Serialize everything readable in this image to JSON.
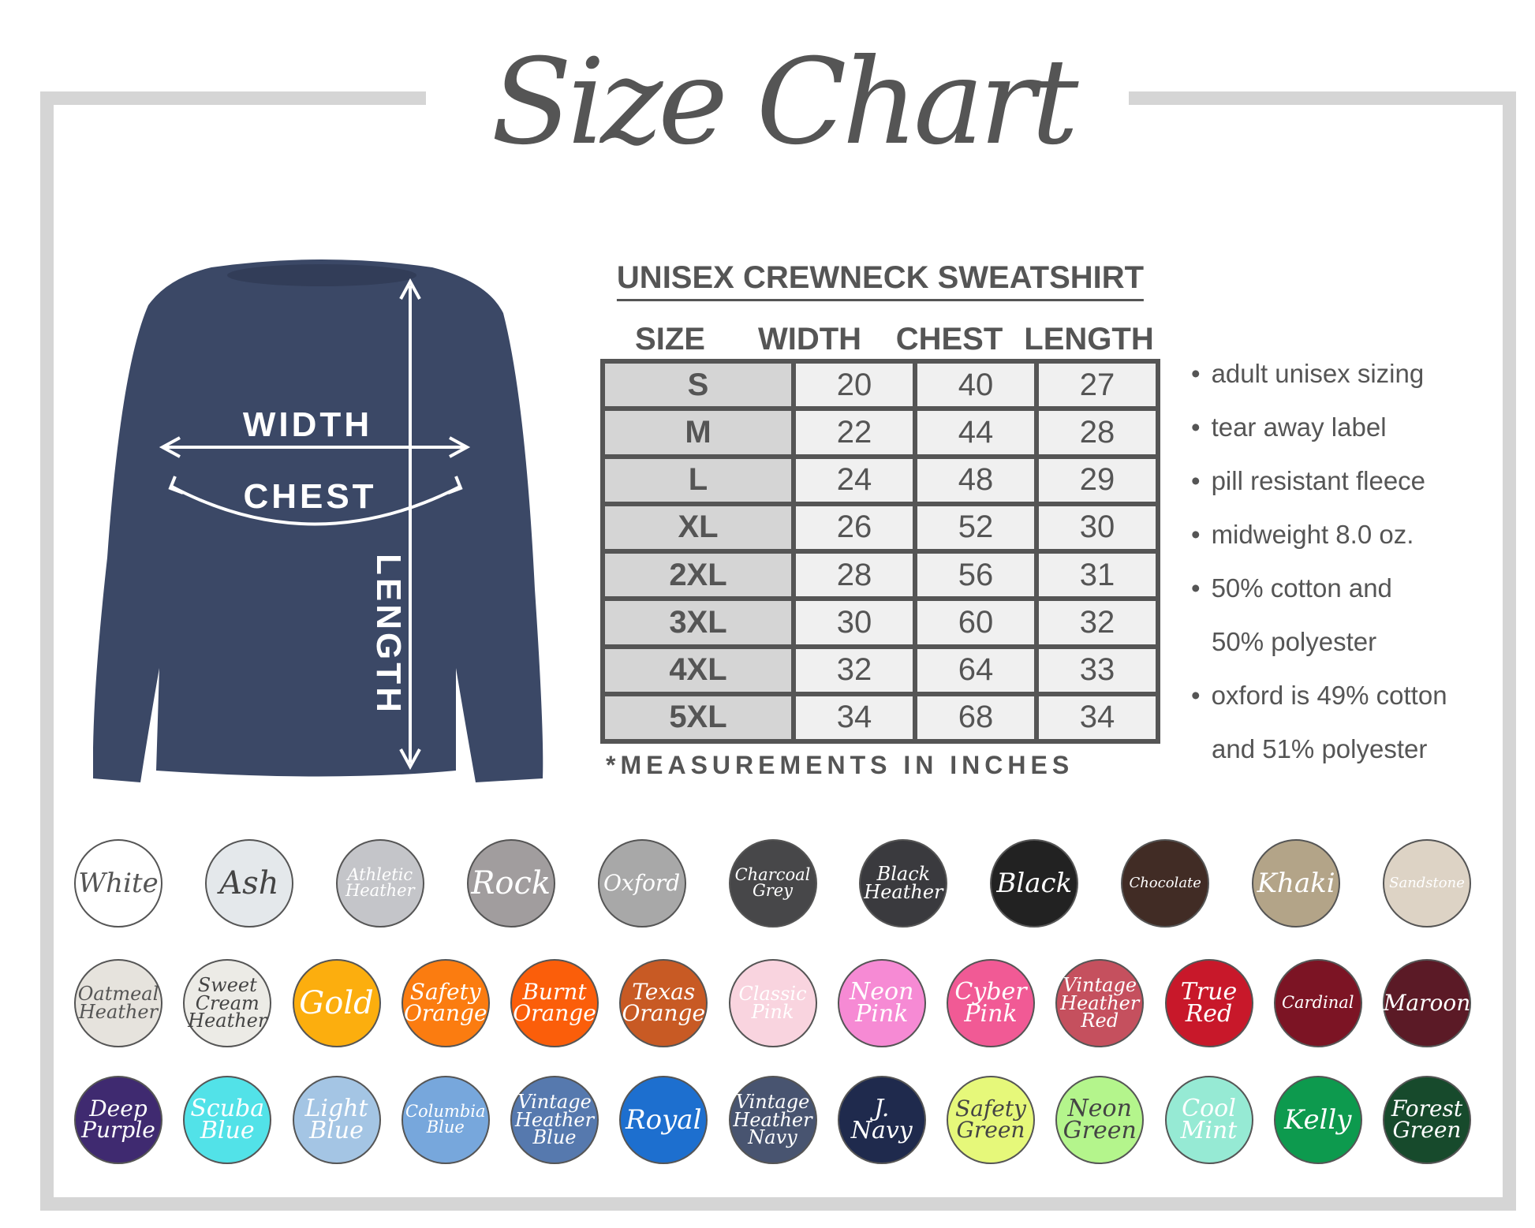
{
  "title": "Size Chart",
  "product": "UNISEX CREWNECK SWEATSHIRT",
  "shirt_color": "#3b4866",
  "diagram_labels": {
    "width": "WIDTH",
    "chest": "CHEST",
    "length": "LENGTH"
  },
  "table": {
    "headers": [
      "SIZE",
      "WIDTH",
      "CHEST",
      "LENGTH"
    ],
    "rows": [
      [
        "S",
        "20",
        "40",
        "27"
      ],
      [
        "M",
        "22",
        "44",
        "28"
      ],
      [
        "L",
        "24",
        "48",
        "29"
      ],
      [
        "XL",
        "26",
        "52",
        "30"
      ],
      [
        "2XL",
        "28",
        "56",
        "31"
      ],
      [
        "3XL",
        "30",
        "60",
        "32"
      ],
      [
        "4XL",
        "32",
        "64",
        "33"
      ],
      [
        "5XL",
        "34",
        "68",
        "34"
      ]
    ]
  },
  "footnote": "*MEASUREMENTS IN INCHES",
  "features": [
    {
      "text": "adult unisex sizing",
      "bullet": true
    },
    {
      "text": "tear away label",
      "bullet": true
    },
    {
      "text": "pill resistant fleece",
      "bullet": true
    },
    {
      "text": "midweight 8.0 oz.",
      "bullet": true
    },
    {
      "text": "50% cotton and",
      "bullet": true
    },
    {
      "text": "50% polyester",
      "bullet": false
    },
    {
      "text": "oxford is 49% cotton",
      "bullet": true
    },
    {
      "text": "and 51% polyester",
      "bullet": false
    }
  ],
  "colors": [
    [
      {
        "name": "White",
        "bg": "#ffffff",
        "fg": "#555555"
      },
      {
        "name": "Ash",
        "bg": "#e4e8eb",
        "fg": "#444444"
      },
      {
        "name": "Athletic\nHeather",
        "bg": "#c4c5c9",
        "fg": "#ffffff"
      },
      {
        "name": "Rock",
        "bg": "#a19d9e",
        "fg": "#ffffff"
      },
      {
        "name": "Oxford",
        "bg": "#a8a8a8",
        "fg": "#ffffff"
      },
      {
        "name": "Charcoal\nGrey",
        "bg": "#474749",
        "fg": "#ffffff"
      },
      {
        "name": "Black\nHeather",
        "bg": "#3a3a3e",
        "fg": "#ffffff"
      },
      {
        "name": "Black",
        "bg": "#222222",
        "fg": "#ffffff"
      },
      {
        "name": "Chocolate",
        "bg": "#412c25",
        "fg": "#ffffff"
      },
      {
        "name": "Khaki",
        "bg": "#b3a488",
        "fg": "#ffffff"
      },
      {
        "name": "Sandstone",
        "bg": "#ddd3c5",
        "fg": "#ffffff"
      }
    ],
    [
      {
        "name": "Oatmeal\nHeather",
        "bg": "#e6e3dd",
        "fg": "#555555"
      },
      {
        "name": "Sweet\nCream\nHeather",
        "bg": "#ecebe6",
        "fg": "#444444"
      },
      {
        "name": "Gold",
        "bg": "#fcae0e",
        "fg": "#ffffff"
      },
      {
        "name": "Safety\nOrange",
        "bg": "#fb7c10",
        "fg": "#ffffff"
      },
      {
        "name": "Burnt\nOrange",
        "bg": "#fb5e0a",
        "fg": "#ffffff"
      },
      {
        "name": "Texas\nOrange",
        "bg": "#c85a24",
        "fg": "#ffffff"
      },
      {
        "name": "Classic\nPink",
        "bg": "#f9d4df",
        "fg": "#ffffff"
      },
      {
        "name": "Neon\nPink",
        "bg": "#f68ad4",
        "fg": "#ffffff"
      },
      {
        "name": "Cyber\nPink",
        "bg": "#f15a95",
        "fg": "#ffffff"
      },
      {
        "name": "Vintage\nHeather\nRed",
        "bg": "#c5505e",
        "fg": "#ffffff"
      },
      {
        "name": "True\nRed",
        "bg": "#c8182a",
        "fg": "#ffffff"
      },
      {
        "name": "Cardinal",
        "bg": "#7c1424",
        "fg": "#ffffff"
      },
      {
        "name": "Maroon",
        "bg": "#5b1a26",
        "fg": "#ffffff"
      }
    ],
    [
      {
        "name": "Deep\nPurple",
        "bg": "#3f2a70",
        "fg": "#ffffff"
      },
      {
        "name": "Scuba\nBlue",
        "bg": "#52e2e8",
        "fg": "#ffffff"
      },
      {
        "name": "Light\nBlue",
        "bg": "#a4c5e4",
        "fg": "#ffffff"
      },
      {
        "name": "Columbia\nBlue",
        "bg": "#77a7dc",
        "fg": "#ffffff"
      },
      {
        "name": "Vintage\nHeather\nBlue",
        "bg": "#5679ae",
        "fg": "#ffffff"
      },
      {
        "name": "Royal",
        "bg": "#1d6fcf",
        "fg": "#ffffff"
      },
      {
        "name": "Vintage\nHeather\nNavy",
        "bg": "#485470",
        "fg": "#ffffff"
      },
      {
        "name": "J.\nNavy",
        "bg": "#1f2a4d",
        "fg": "#ffffff"
      },
      {
        "name": "Safety\nGreen",
        "bg": "#e6f87a",
        "fg": "#444444"
      },
      {
        "name": "Neon\nGreen",
        "bg": "#b4f58c",
        "fg": "#444444"
      },
      {
        "name": "Cool\nMint",
        "bg": "#96ead4",
        "fg": "#ffffff"
      },
      {
        "name": "Kelly",
        "bg": "#0d9a4e",
        "fg": "#ffffff"
      },
      {
        "name": "Forest\nGreen",
        "bg": "#174a2c",
        "fg": "#ffffff"
      }
    ]
  ]
}
